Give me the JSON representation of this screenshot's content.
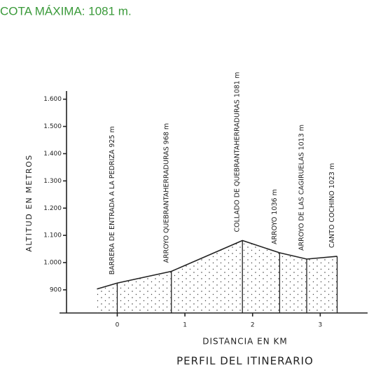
{
  "header": "COTA MÁXIMA: 1081 m.",
  "chart_data": {
    "type": "area",
    "title": "PERFIL DEL ITINERARIO",
    "x_label": "DISTANCIA EN KM",
    "y_label": "ALTITUD EN METROS",
    "x": [
      -0.3,
      0,
      0.8,
      1.85,
      2.4,
      2.8,
      3.25
    ],
    "values": [
      903,
      925,
      968,
      1081,
      1036,
      1013,
      1023
    ],
    "point_labels": [
      null,
      "BARRERA DE ENTRADA A LA PEDRIZA 925 m",
      "ARROYO QUEBRANTAHERRADURAS 968 m",
      "COLLADO DE QUEBRANTAHERRADURAS 1081 m",
      "ARROYO 1036 m",
      "ARROYO DE LAS CAGIRUELAS 1013 m",
      "CANTO COCHINO 1023 m"
    ],
    "color": "#222222",
    "xlim": [
      -0.75,
      3.7
    ],
    "ylim": [
      815,
      1630
    ],
    "xticks": [
      0,
      1,
      2,
      3
    ],
    "yticks": [
      {
        "value": 1600,
        "label": "1.600"
      },
      {
        "value": 1500,
        "label": "1.500"
      },
      {
        "value": 1400,
        "label": "1.400"
      },
      {
        "value": 1300,
        "label": "1.300"
      },
      {
        "value": 1200,
        "label": "1.200"
      },
      {
        "value": 1100,
        "label": "1.100"
      },
      {
        "value": 1000,
        "label": "1.000"
      },
      900
    ]
  }
}
